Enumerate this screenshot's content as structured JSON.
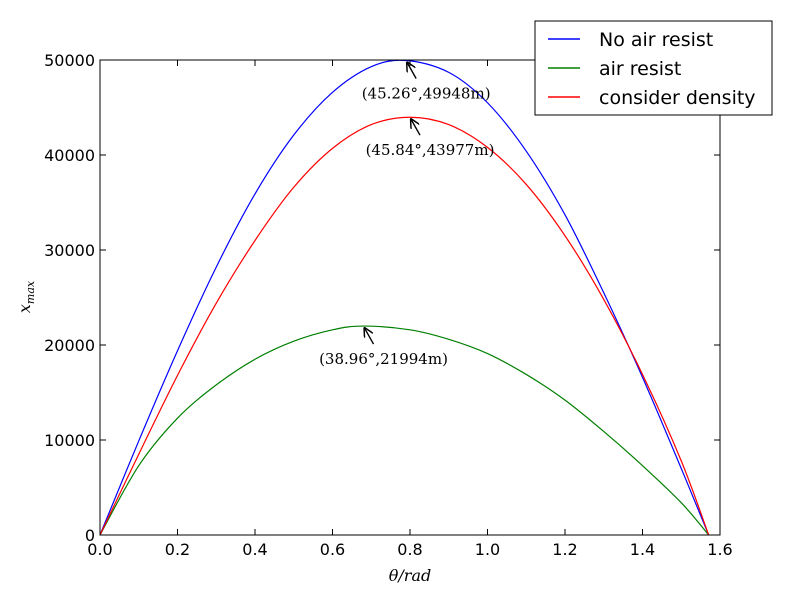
{
  "chart_data": {
    "type": "line",
    "title": "",
    "xlabel": "θ/rad",
    "ylabel": "x_max",
    "xlim": [
      0.0,
      1.6
    ],
    "ylim": [
      0,
      50000
    ],
    "xticks": [
      0.0,
      0.2,
      0.4,
      0.6,
      0.8,
      1.0,
      1.2,
      1.4,
      1.6
    ],
    "xtick_labels": [
      "0.0",
      "0.2",
      "0.4",
      "0.6",
      "0.8",
      "1.0",
      "1.2",
      "1.4",
      "1.6"
    ],
    "yticks": [
      0,
      10000,
      20000,
      30000,
      40000,
      50000
    ],
    "ytick_labels": [
      "0",
      "10000",
      "20000",
      "30000",
      "40000",
      "50000"
    ],
    "grid": false,
    "legend_position": "top-right",
    "series": [
      {
        "name": "No air resist",
        "color": "#0000ff",
        "x": [
          0.0,
          0.1,
          0.2,
          0.3,
          0.4,
          0.5,
          0.6,
          0.7,
          0.79,
          0.9,
          1.0,
          1.1,
          1.2,
          1.3,
          1.4,
          1.5,
          1.5708
        ],
        "y": [
          0,
          9900,
          19400,
          28200,
          35900,
          42100,
          46600,
          49300,
          49948,
          48700,
          45500,
          40400,
          33700,
          25500,
          16600,
          7000,
          0
        ]
      },
      {
        "name": "air resist",
        "color": "#008000",
        "x": [
          0.0,
          0.1,
          0.2,
          0.3,
          0.4,
          0.5,
          0.6,
          0.68,
          0.8,
          0.9,
          1.0,
          1.1,
          1.2,
          1.3,
          1.4,
          1.5,
          1.5708
        ],
        "y": [
          0,
          7300,
          12300,
          15800,
          18500,
          20400,
          21600,
          21994,
          21600,
          20600,
          19100,
          16900,
          14200,
          10900,
          7300,
          3400,
          0
        ]
      },
      {
        "name": "consider density",
        "color": "#ff0000",
        "x": [
          0.0,
          0.1,
          0.2,
          0.3,
          0.4,
          0.5,
          0.6,
          0.7,
          0.8,
          0.9,
          1.0,
          1.1,
          1.2,
          1.3,
          1.4,
          1.5,
          1.5708
        ],
        "y": [
          0,
          8500,
          16800,
          24400,
          31000,
          36600,
          40700,
          43200,
          43977,
          43200,
          40800,
          36900,
          31500,
          24800,
          16900,
          7800,
          0
        ]
      }
    ],
    "annotations": [
      {
        "text": "(45.26°,49948m)",
        "x": 0.79,
        "y": 49948
      },
      {
        "text": "(45.84°,43977m)",
        "x": 0.8,
        "y": 43977
      },
      {
        "text": "(38.96°,21994m)",
        "x": 0.68,
        "y": 21994
      }
    ]
  }
}
